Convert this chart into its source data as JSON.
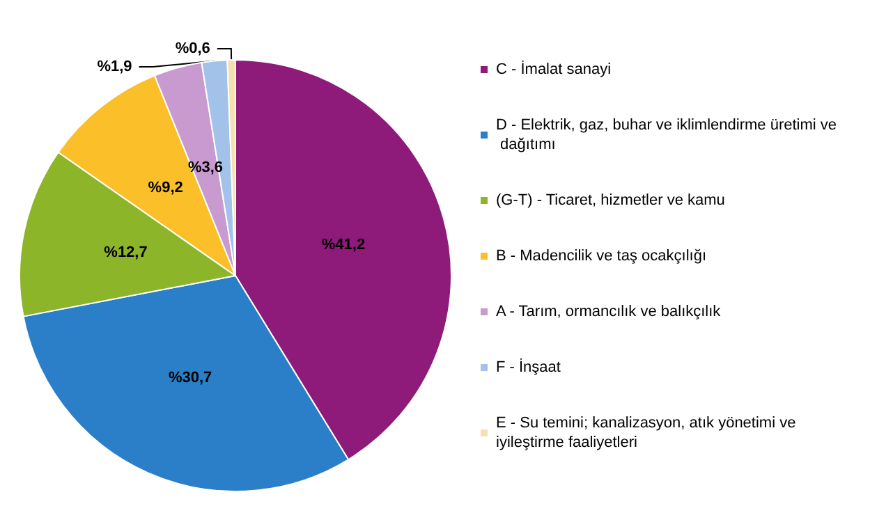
{
  "chart_data": {
    "type": "pie",
    "categories": [
      "C - İmalat sanayi",
      "D - Elektrik, gaz, buhar ve iklimlendirme üretimi ve dağıtımı",
      "(G-T) - Ticaret, hizmetler ve kamu",
      "B - Madencilik ve taş ocakçılığı",
      "A - Tarım, ormancılık ve balıkçılık",
      "F - İnşaat",
      "E - Su temini; kanalizasyon, atık yönetimi ve iyileştirme faaliyetleri"
    ],
    "values": [
      41.2,
      30.7,
      12.7,
      9.2,
      3.6,
      1.9,
      0.6
    ],
    "value_labels": [
      "%41,2",
      "%30,7",
      "%12,7",
      "%9,2",
      "%3,6",
      "%1,9",
      "%0,6"
    ],
    "colors": [
      "#8e1a7a",
      "#2a7fc8",
      "#8db52a",
      "#fbbf2a",
      "#c99ad0",
      "#a3c2ea",
      "#f5e0b0"
    ],
    "legend": "right"
  }
}
